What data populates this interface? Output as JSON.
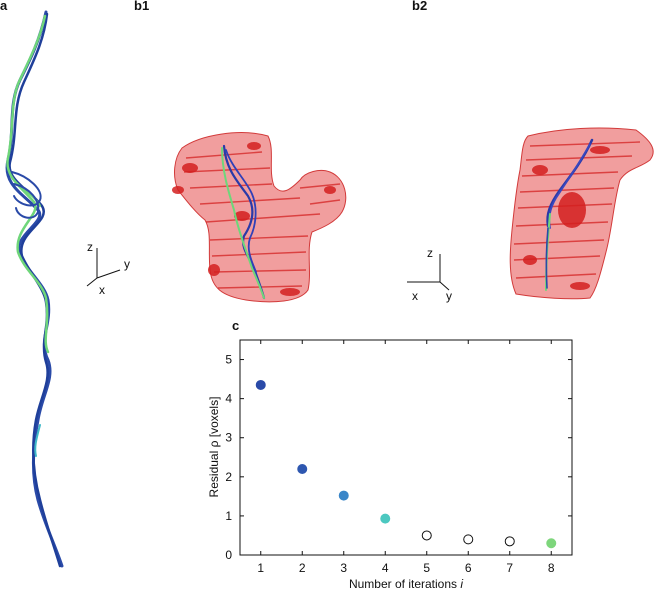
{
  "panels": {
    "a": "a",
    "b1": "b1",
    "b2": "b2",
    "c": "c"
  },
  "axes_triad_b1": {
    "z": "z",
    "y": "y",
    "x": "x"
  },
  "axes_triad_b2": {
    "z": "z",
    "x": "x",
    "y": "y"
  },
  "colors": {
    "centerline_dark": "#2a4aa8",
    "centerline_green": "#6fd67a",
    "centerline_cyan": "#3fb8c8",
    "vessel_fill": "#e86a6a",
    "vessel_dark": "#cc2222"
  },
  "chart_data": {
    "type": "scatter",
    "xlabel": "Number of iterations i",
    "xlabel_main": "Number of iterations ",
    "xlabel_italic": "i",
    "ylabel": "Residual ρ [voxels]",
    "xlim": [
      0.5,
      8.5
    ],
    "ylim": [
      0,
      5.5
    ],
    "xticks": [
      1,
      2,
      3,
      4,
      5,
      6,
      7,
      8
    ],
    "yticks": [
      0,
      1,
      2,
      3,
      4,
      5
    ],
    "grid": false,
    "points": [
      {
        "x": 1,
        "y": 4.35,
        "color": "#2a4aa8",
        "filled": true
      },
      {
        "x": 2,
        "y": 2.2,
        "color": "#2e57b0",
        "filled": true
      },
      {
        "x": 3,
        "y": 1.52,
        "color": "#3a86c8",
        "filled": true
      },
      {
        "x": 4,
        "y": 0.93,
        "color": "#4cc8c0",
        "filled": true
      },
      {
        "x": 5,
        "y": 0.5,
        "color": "#111111",
        "filled": false
      },
      {
        "x": 6,
        "y": 0.4,
        "color": "#111111",
        "filled": false
      },
      {
        "x": 7,
        "y": 0.35,
        "color": "#111111",
        "filled": false
      },
      {
        "x": 8,
        "y": 0.3,
        "color": "#7ed67c",
        "filled": true
      }
    ]
  }
}
